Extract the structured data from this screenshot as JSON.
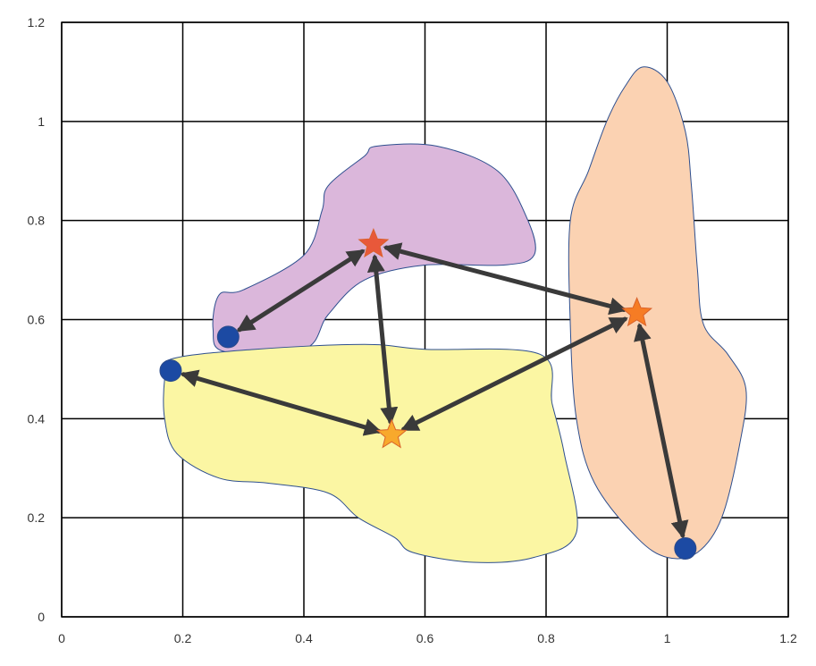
{
  "chart_data": {
    "type": "scatter",
    "title": "",
    "xlabel": "",
    "ylabel": "",
    "xlim": [
      0,
      1.2
    ],
    "ylim": [
      0,
      1.2
    ],
    "grid": true,
    "x_ticks": [
      0,
      0.2,
      0.4,
      0.6,
      0.8,
      1,
      1.2
    ],
    "y_ticks": [
      0,
      0.2,
      0.4,
      0.6,
      0.8,
      1,
      1.2
    ],
    "x_tick_labels": [
      "0",
      "0.2",
      "0.4",
      "0.6",
      "0.8",
      "1",
      "1.2"
    ],
    "y_tick_labels": [
      "0",
      "0.2",
      "0.4",
      "0.6",
      "0.8",
      "1",
      "1.2"
    ],
    "regions": [
      {
        "id": "purple",
        "fill": "#dbb7db",
        "outline": [
          [
            0.27,
            0.535
          ],
          [
            0.4,
            0.54
          ],
          [
            0.44,
            0.61
          ],
          [
            0.5,
            0.68
          ],
          [
            0.6,
            0.71
          ],
          [
            0.73,
            0.71
          ],
          [
            0.78,
            0.73
          ],
          [
            0.77,
            0.8
          ],
          [
            0.72,
            0.9
          ],
          [
            0.62,
            0.95
          ],
          [
            0.52,
            0.95
          ],
          [
            0.5,
            0.93
          ],
          [
            0.44,
            0.87
          ],
          [
            0.43,
            0.82
          ],
          [
            0.4,
            0.73
          ],
          [
            0.3,
            0.66
          ],
          [
            0.26,
            0.65
          ],
          [
            0.25,
            0.58
          ]
        ]
      },
      {
        "id": "yellow",
        "fill": "#fbf6a3",
        "outline": [
          [
            0.18,
            0.52
          ],
          [
            0.32,
            0.54
          ],
          [
            0.5,
            0.55
          ],
          [
            0.6,
            0.54
          ],
          [
            0.79,
            0.53
          ],
          [
            0.81,
            0.43
          ],
          [
            0.83,
            0.33
          ],
          [
            0.85,
            0.17
          ],
          [
            0.78,
            0.12
          ],
          [
            0.68,
            0.11
          ],
          [
            0.58,
            0.13
          ],
          [
            0.55,
            0.16
          ],
          [
            0.49,
            0.2
          ],
          [
            0.44,
            0.25
          ],
          [
            0.34,
            0.27
          ],
          [
            0.26,
            0.28
          ],
          [
            0.19,
            0.33
          ],
          [
            0.17,
            0.4
          ],
          [
            0.17,
            0.48
          ]
        ]
      },
      {
        "id": "orange",
        "fill": "#fbd2b2",
        "outline": [
          [
            0.84,
            0.59
          ],
          [
            0.84,
            0.8
          ],
          [
            0.87,
            0.9
          ],
          [
            0.9,
            1.0
          ],
          [
            0.93,
            1.07
          ],
          [
            0.96,
            1.11
          ],
          [
            1.0,
            1.08
          ],
          [
            1.03,
            0.98
          ],
          [
            1.04,
            0.87
          ],
          [
            1.05,
            0.7
          ],
          [
            1.06,
            0.59
          ],
          [
            1.1,
            0.53
          ],
          [
            1.13,
            0.46
          ],
          [
            1.12,
            0.35
          ],
          [
            1.09,
            0.2
          ],
          [
            1.05,
            0.13
          ],
          [
            1.0,
            0.12
          ],
          [
            0.95,
            0.16
          ],
          [
            0.88,
            0.27
          ],
          [
            0.85,
            0.4
          ]
        ]
      }
    ],
    "series": [
      {
        "marker": "circle",
        "color": "#1c4aa3",
        "points": [
          [
            0.275,
            0.565
          ],
          [
            0.18,
            0.497
          ],
          [
            1.03,
            0.138
          ]
        ]
      },
      {
        "marker": "star",
        "points": [
          {
            "x": 0.515,
            "y": 0.752,
            "color": "#e8583a"
          },
          {
            "x": 0.545,
            "y": 0.367,
            "color": "#f8a92c"
          },
          {
            "x": 0.95,
            "y": 0.613,
            "color": "#f67c24"
          }
        ]
      }
    ],
    "arrows": [
      {
        "from": [
          0.275,
          0.565
        ],
        "to": [
          0.515,
          0.752
        ],
        "both_ends": true
      },
      {
        "from": [
          0.515,
          0.752
        ],
        "to": [
          0.545,
          0.367
        ],
        "both_ends": true
      },
      {
        "from": [
          0.515,
          0.752
        ],
        "to": [
          0.95,
          0.613
        ],
        "both_ends": true
      },
      {
        "from": [
          0.18,
          0.497
        ],
        "to": [
          0.545,
          0.367
        ],
        "both_ends": true
      },
      {
        "from": [
          0.545,
          0.367
        ],
        "to": [
          0.95,
          0.613
        ],
        "both_ends": true
      },
      {
        "from": [
          0.95,
          0.613
        ],
        "to": [
          1.03,
          0.138
        ],
        "both_ends": true
      }
    ],
    "arrow_color": "#3a3a3a"
  }
}
